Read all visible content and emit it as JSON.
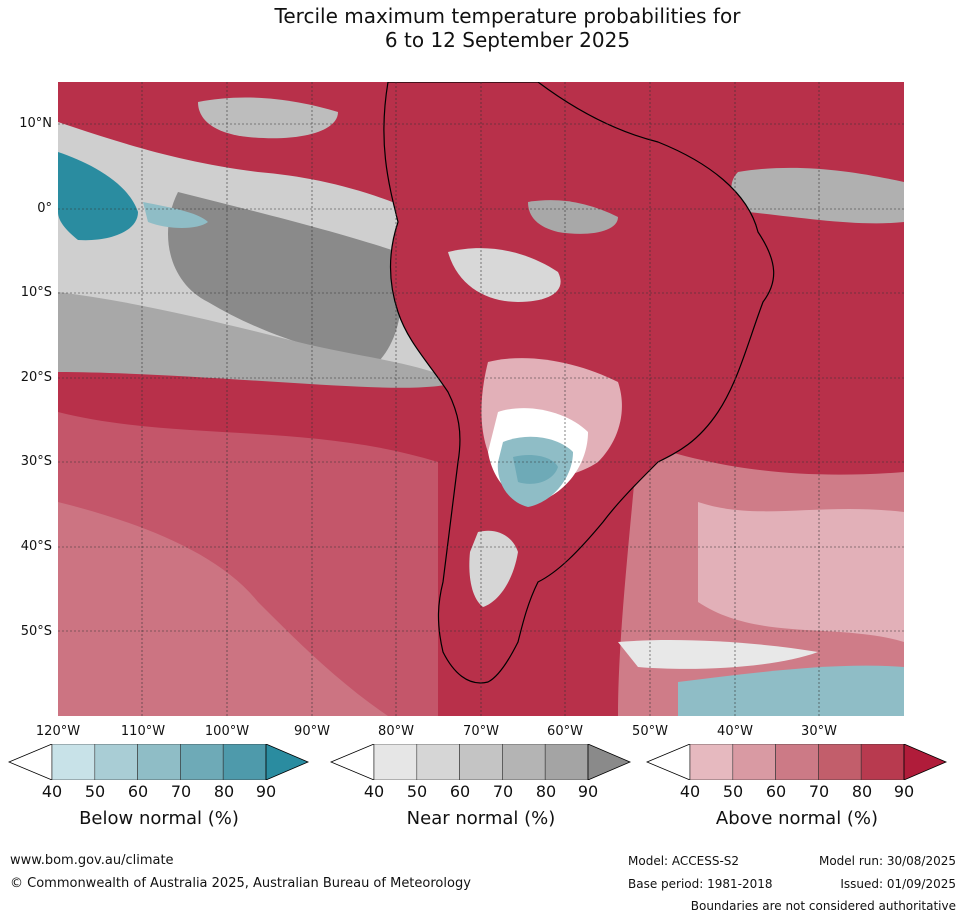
{
  "title_line1": "Tercile maximum temperature probabilities for",
  "title_line2": "6 to 12 September 2025",
  "latitudes": [
    "10°N",
    "0°",
    "10°S",
    "20°S",
    "30°S",
    "40°S",
    "50°S"
  ],
  "longitudes": [
    "120°W",
    "110°W",
    "100°W",
    "90°W",
    "80°W",
    "70°W",
    "60°W",
    "50°W",
    "40°W",
    "30°W"
  ],
  "colorbars": [
    {
      "label": "Below normal (%)",
      "ticks": [
        "40",
        "50",
        "60",
        "70",
        "80",
        "90"
      ],
      "colors": [
        "#ffffff",
        "#c8e2e8",
        "#a9cdd5",
        "#8fbdc6",
        "#6eaab7",
        "#4e9aab",
        "#2a8ca0"
      ]
    },
    {
      "label": "Near normal (%)",
      "ticks": [
        "40",
        "50",
        "60",
        "70",
        "80",
        "90"
      ],
      "colors": [
        "#ffffff",
        "#e6e6e6",
        "#d6d6d6",
        "#c4c4c4",
        "#b4b4b4",
        "#a4a4a4",
        "#8a8a8a"
      ]
    },
    {
      "label": "Above normal (%)",
      "ticks": [
        "40",
        "50",
        "60",
        "70",
        "80",
        "90"
      ],
      "colors": [
        "#ffffff",
        "#e6b9bf",
        "#d99aa3",
        "#cc7a86",
        "#c25e6b",
        "#b83a4f",
        "#b01c3a"
      ]
    }
  ],
  "footer": {
    "url": "www.bom.gov.au/climate",
    "copyright": "© Commonwealth of Australia 2025, Australian Bureau of Meteorology",
    "model": "Model: ACCESS-S2",
    "model_run": "Model run: 30/08/2025",
    "base_period": "Base period: 1981-2018",
    "issued": "Issued: 01/09/2025",
    "disclaimer": "Boundaries are not considered authoritative"
  }
}
